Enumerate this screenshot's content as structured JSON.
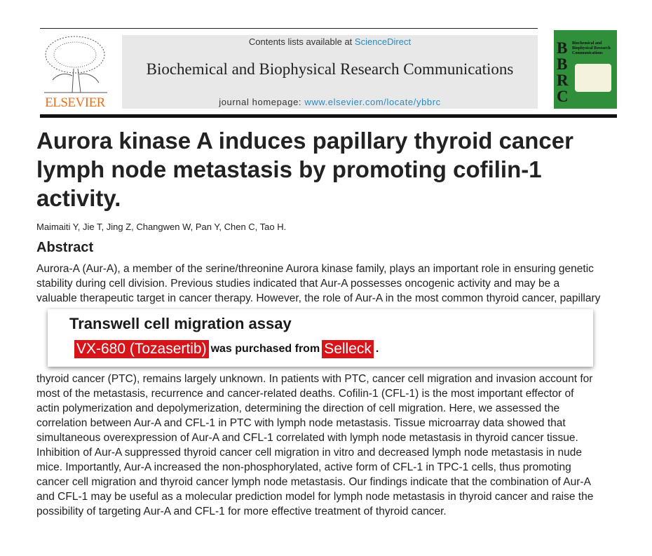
{
  "header": {
    "contents_prefix": "Contents lists available at ",
    "contents_link": "ScienceDirect",
    "journal_name": "Biochemical and Biophysical Research Communications",
    "homepage_prefix": "journal homepage: ",
    "homepage_link": "www.elsevier.com/locate/ybbrc",
    "publisher_logo": "ELSEVIER",
    "cover_letters": "BBRC",
    "cover_title": "Biochemical and Biophysical Research Communications"
  },
  "article": {
    "title": "Aurora kinase A induces papillary thyroid cancer lymph node metastasis by promoting cofilin-1 activity.",
    "authors": "Maimaiti Y, Jie T, Jing Z, Changwen W, Pan Y, Chen C, Tao H.",
    "abstract_heading": "Abstract",
    "abstract_lines": [
      "Aurora-A (Aur-A), a member of the serine/threonine Aurora kinase family, plays an important role in ensuring genetic",
      "stability during cell division. Previous studies indicated that Aur-A possesses oncogenic activity and may be a",
      "valuable therapeutic target in cancer therapy. However, the role of Aur-A in the most common thyroid cancer, papillary",
      "thyroid cancer (PTC), remains largely unknown. In patients with PTC, cancer cell migration and invasion account for",
      "most of the metastasis, recurrence and cancer-related deaths. Cofilin-1 (CFL-1) is the most important effector of",
      "actin polymerization and depolymerization, determining the direction of cell migration. Here, we assessed the",
      "correlation between Aur-A and CFL-1 in PTC with lymph node metastasis. Tissue microarray data showed that",
      "simultaneous overexpression of Aur-A and CFL-1 correlated with lymph node metastasis in thyroid cancer tissue.",
      "Inhibition of Aur-A suppressed thyroid cancer cell migration in vitro and decreased lymph node metastasis in nude",
      "mice. Importantly, Aur-A increased the non-phosphorylated, active form of CFL-1 in TPC-1 cells, thus promoting",
      "cancer cell migration and thyroid cancer lymph node metastasis. Our findings indicate that the combination of Aur-A",
      "and CFL-1 may be useful as a molecular prediction model for lymph node metastasis in thyroid cancer and raise the",
      "possibility of targeting Aur-A and CFL-1 for more effective treatment of thyroid cancer."
    ]
  },
  "overlay": {
    "heading": "Transwell cell migration assay",
    "compound": "VX-680 (Tozasertib)",
    "middle": "was purchased from",
    "supplier": "Selleck",
    "end": ".",
    "highlight_color": "#d7141a"
  }
}
